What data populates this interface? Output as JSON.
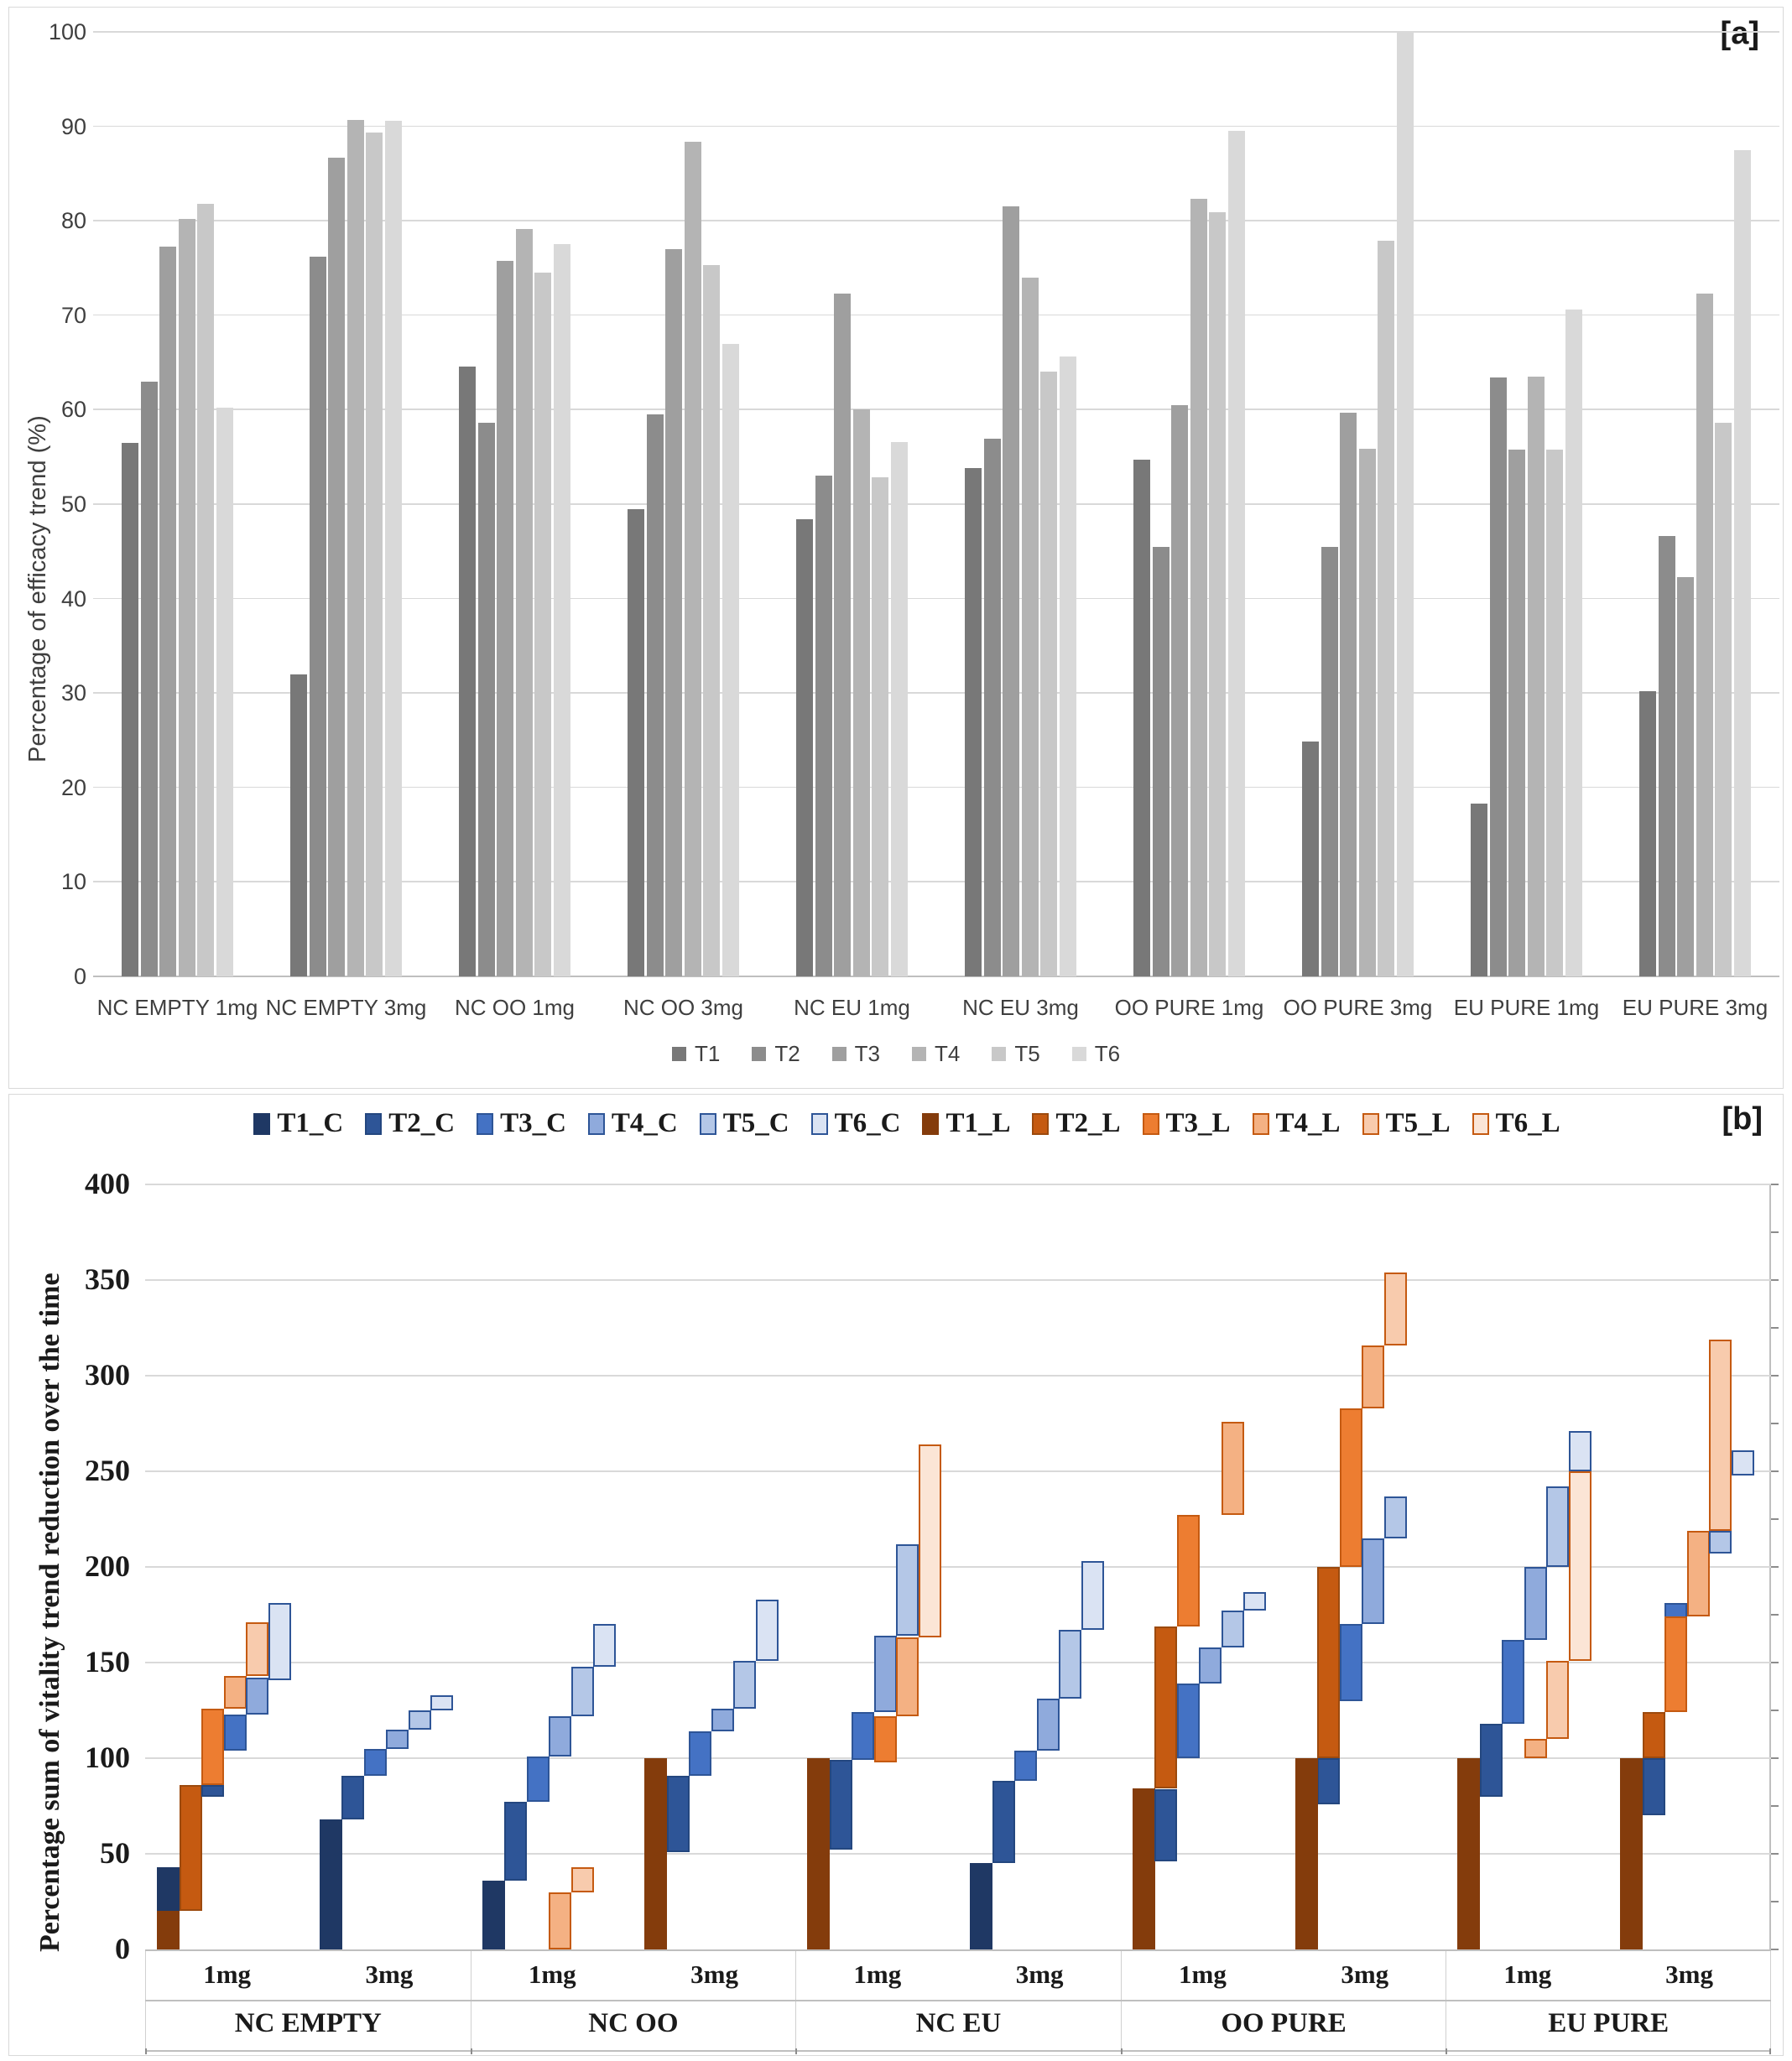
{
  "panel_a_label": "[a]",
  "panel_b_label": "[b]",
  "chart_data": [
    {
      "type": "bar",
      "name": "efficacy-trend",
      "title": "",
      "ylabel": "Percentage of efficacy trend (%)",
      "ylim": [
        0,
        100
      ],
      "y_ticks": [
        100,
        90,
        80,
        70,
        60,
        50,
        40,
        30,
        20,
        10,
        0
      ],
      "grid": true,
      "legend_position": "bottom",
      "series_names": [
        "T1",
        "T2",
        "T3",
        "T4",
        "T5",
        "T6"
      ],
      "series_colors": [
        "#787878",
        "#8c8c8c",
        "#9f9f9f",
        "#b4b4b4",
        "#c8c8c8",
        "#d9d9d9"
      ],
      "categories": [
        "NC EMPTY 1mg",
        "NC EMPTY 3mg",
        "NC OO 1mg",
        "NC OO 3mg",
        "NC EU 1mg",
        "NC EU 3mg",
        "OO PURE 1mg",
        "OO PURE 3mg",
        "EU PURE 1mg",
        "EU PURE 3mg"
      ],
      "values": [
        [
          56.5,
          63.0,
          77.3,
          80.2,
          81.8,
          60.2
        ],
        [
          32.0,
          76.2,
          86.7,
          90.7,
          89.3,
          90.6
        ],
        [
          64.6,
          58.6,
          75.8,
          79.1,
          74.5,
          77.5
        ],
        [
          49.5,
          59.5,
          77.0,
          88.4,
          75.3,
          67.0
        ],
        [
          48.4,
          53.0,
          72.3,
          60.0,
          52.8,
          56.6
        ],
        [
          53.8,
          56.9,
          81.5,
          74.0,
          64.0,
          65.6
        ],
        [
          54.7,
          45.5,
          60.5,
          82.3,
          80.9,
          89.5
        ],
        [
          24.9,
          45.5,
          59.7,
          55.9,
          77.9,
          100.0
        ],
        [
          18.3,
          63.4,
          55.8,
          63.5,
          55.8,
          70.6
        ],
        [
          30.2,
          46.6,
          42.3,
          72.3,
          58.6,
          87.5
        ]
      ]
    },
    {
      "type": "bar",
      "subtype": "floating-waterfall",
      "name": "vitality-trend-reduction",
      "title": "",
      "ylabel": "Percentage sum of  vitality trend reduction over the time",
      "ylim": [
        0,
        400
      ],
      "y_ticks": [
        400,
        350,
        300,
        250,
        200,
        150,
        100,
        50,
        0
      ],
      "grid": true,
      "legend_position": "top",
      "legend": [
        {
          "label": "T1_C",
          "fill": "#1f3864",
          "border": "#1f3864"
        },
        {
          "label": "T2_C",
          "fill": "#2e5597",
          "border": "#24477f"
        },
        {
          "label": "T3_C",
          "fill": "#4472c4",
          "border": "#2e5597"
        },
        {
          "label": "T4_C",
          "fill": "#8faadc",
          "border": "#2e5597"
        },
        {
          "label": "T5_C",
          "fill": "#b4c7e7",
          "border": "#2e5597"
        },
        {
          "label": "T6_C",
          "fill": "#dae3f3",
          "border": "#2e5597"
        },
        {
          "label": "T1_L",
          "fill": "#843c0c",
          "border": "#843c0c"
        },
        {
          "label": "T2_L",
          "fill": "#c55a11",
          "border": "#9c4a0e"
        },
        {
          "label": "T3_L",
          "fill": "#ed7d31",
          "border": "#c55a11"
        },
        {
          "label": "T4_L",
          "fill": "#f4b183",
          "border": "#c55a11"
        },
        {
          "label": "T5_L",
          "fill": "#f8cbad",
          "border": "#c55a11"
        },
        {
          "label": "T6_L",
          "fill": "#fbe5d6",
          "border": "#c55a11"
        }
      ],
      "groups": [
        {
          "label": "NC EMPTY",
          "subgroups": [
            {
              "label": "1mg",
              "segments": [
                {
                  "series": "T1_C",
                  "slot": 0,
                  "from": 0,
                  "to": 43
                },
                {
                  "series": "T1_L",
                  "slot": 0,
                  "from": 0,
                  "to": 20
                },
                {
                  "series": "T2_L",
                  "slot": 1,
                  "from": 20,
                  "to": 86
                },
                {
                  "series": "T2_C",
                  "slot": 2,
                  "from": 80,
                  "to": 86
                },
                {
                  "series": "T3_L",
                  "slot": 2,
                  "from": 86,
                  "to": 126
                },
                {
                  "series": "T3_C",
                  "slot": 3,
                  "from": 104,
                  "to": 123
                },
                {
                  "series": "T4_L",
                  "slot": 3,
                  "from": 126,
                  "to": 143
                },
                {
                  "series": "T4_C",
                  "slot": 4,
                  "from": 123,
                  "to": 142
                },
                {
                  "series": "T5_L",
                  "slot": 4,
                  "from": 143,
                  "to": 171
                },
                {
                  "series": "T6_C",
                  "slot": 5,
                  "from": 141,
                  "to": 181
                }
              ]
            },
            {
              "label": "3mg",
              "segments": [
                {
                  "series": "T1_C",
                  "slot": 0,
                  "from": 0,
                  "to": 68
                },
                {
                  "series": "T2_C",
                  "slot": 1,
                  "from": 68,
                  "to": 91
                },
                {
                  "series": "T3_C",
                  "slot": 2,
                  "from": 91,
                  "to": 105
                },
                {
                  "series": "T4_C",
                  "slot": 3,
                  "from": 105,
                  "to": 115
                },
                {
                  "series": "T5_C",
                  "slot": 4,
                  "from": 115,
                  "to": 125
                },
                {
                  "series": "T6_C",
                  "slot": 5,
                  "from": 125,
                  "to": 133
                }
              ]
            }
          ]
        },
        {
          "label": "NC OO",
          "subgroups": [
            {
              "label": "1mg",
              "segments": [
                {
                  "series": "T1_C",
                  "slot": 0,
                  "from": 0,
                  "to": 36
                },
                {
                  "series": "T2_C",
                  "slot": 1,
                  "from": 36,
                  "to": 77
                },
                {
                  "series": "T3_C",
                  "slot": 2,
                  "from": 77,
                  "to": 101
                },
                {
                  "series": "T4_L",
                  "slot": 3,
                  "from": 0,
                  "to": 30
                },
                {
                  "series": "T4_C",
                  "slot": 3,
                  "from": 101,
                  "to": 122
                },
                {
                  "series": "T5_L",
                  "slot": 4,
                  "from": 30,
                  "to": 43
                },
                {
                  "series": "T5_C",
                  "slot": 4,
                  "from": 122,
                  "to": 148
                },
                {
                  "series": "T6_C",
                  "slot": 5,
                  "from": 148,
                  "to": 170
                }
              ]
            },
            {
              "label": "3mg",
              "segments": [
                {
                  "series": "T2_C",
                  "slot": 1,
                  "from": 51,
                  "to": 91
                },
                {
                  "series": "T1_L",
                  "slot": 0,
                  "from": 0,
                  "to": 100
                },
                {
                  "series": "T3_C",
                  "slot": 2,
                  "from": 91,
                  "to": 114
                },
                {
                  "series": "T4_C",
                  "slot": 3,
                  "from": 114,
                  "to": 126
                },
                {
                  "series": "T5_C",
                  "slot": 4,
                  "from": 126,
                  "to": 151
                },
                {
                  "series": "T6_C",
                  "slot": 5,
                  "from": 151,
                  "to": 183
                }
              ]
            }
          ]
        },
        {
          "label": "NC EU",
          "subgroups": [
            {
              "label": "1mg",
              "segments": [
                {
                  "series": "T1_L",
                  "slot": 0,
                  "from": 0,
                  "to": 100
                },
                {
                  "series": "T2_C",
                  "slot": 1,
                  "from": 52,
                  "to": 99
                },
                {
                  "series": "T3_C",
                  "slot": 2,
                  "from": 99,
                  "to": 124
                },
                {
                  "series": "T3_L",
                  "slot": 3,
                  "from": 98,
                  "to": 122
                },
                {
                  "series": "T4_C",
                  "slot": 3,
                  "from": 124,
                  "to": 164
                },
                {
                  "series": "T4_L",
                  "slot": 4,
                  "from": 122,
                  "to": 163
                },
                {
                  "series": "T5_C",
                  "slot": 4,
                  "from": 164,
                  "to": 212
                },
                {
                  "series": "T6_L",
                  "slot": 5,
                  "from": 163,
                  "to": 264
                }
              ]
            },
            {
              "label": "3mg",
              "segments": [
                {
                  "series": "T1_C",
                  "slot": 0,
                  "from": 0,
                  "to": 45
                },
                {
                  "series": "T2_C",
                  "slot": 1,
                  "from": 45,
                  "to": 88
                },
                {
                  "series": "T3_C",
                  "slot": 2,
                  "from": 88,
                  "to": 104
                },
                {
                  "series": "T4_C",
                  "slot": 3,
                  "from": 104,
                  "to": 131
                },
                {
                  "series": "T5_C",
                  "slot": 4,
                  "from": 131,
                  "to": 167
                },
                {
                  "series": "T6_C",
                  "slot": 5,
                  "from": 167,
                  "to": 203
                }
              ]
            }
          ]
        },
        {
          "label": "OO PURE",
          "subgroups": [
            {
              "label": "1mg",
              "segments": [
                {
                  "series": "T1_L",
                  "slot": 0,
                  "from": 0,
                  "to": 84
                },
                {
                  "series": "T2_C",
                  "slot": 1,
                  "from": 46,
                  "to": 84
                },
                {
                  "series": "T2_L",
                  "slot": 1,
                  "from": 84,
                  "to": 169
                },
                {
                  "series": "T3_C",
                  "slot": 2,
                  "from": 100,
                  "to": 139
                },
                {
                  "series": "T3_L",
                  "slot": 2,
                  "from": 169,
                  "to": 227
                },
                {
                  "series": "T4_C",
                  "slot": 3,
                  "from": 139,
                  "to": 158
                },
                {
                  "series": "T5_C",
                  "slot": 4,
                  "from": 158,
                  "to": 177
                },
                {
                  "series": "T4_L",
                  "slot": 4,
                  "from": 227,
                  "to": 276
                },
                {
                  "series": "T6_C",
                  "slot": 5,
                  "from": 177,
                  "to": 187
                }
              ]
            },
            {
              "label": "3mg",
              "segments": [
                {
                  "series": "T2_C",
                  "slot": 1,
                  "from": 76,
                  "to": 100
                },
                {
                  "series": "T1_L",
                  "slot": 0,
                  "from": 0,
                  "to": 100
                },
                {
                  "series": "T2_L",
                  "slot": 1,
                  "from": 100,
                  "to": 200
                },
                {
                  "series": "T3_C",
                  "slot": 2,
                  "from": 130,
                  "to": 170
                },
                {
                  "series": "T3_L",
                  "slot": 2,
                  "from": 200,
                  "to": 283
                },
                {
                  "series": "T4_C",
                  "slot": 3,
                  "from": 170,
                  "to": 215
                },
                {
                  "series": "T4_L",
                  "slot": 3,
                  "from": 283,
                  "to": 316
                },
                {
                  "series": "T5_C",
                  "slot": 4,
                  "from": 215,
                  "to": 237
                },
                {
                  "series": "T5_L",
                  "slot": 4,
                  "from": 316,
                  "to": 354
                }
              ]
            }
          ]
        },
        {
          "label": "EU PURE",
          "subgroups": [
            {
              "label": "1mg",
              "segments": [
                {
                  "series": "T1_L",
                  "slot": 0,
                  "from": 0,
                  "to": 100
                },
                {
                  "series": "T2_C",
                  "slot": 1,
                  "from": 80,
                  "to": 118
                },
                {
                  "series": "T3_C",
                  "slot": 2,
                  "from": 118,
                  "to": 162
                },
                {
                  "series": "T4_C",
                  "slot": 3,
                  "from": 162,
                  "to": 200
                },
                {
                  "series": "T4_L",
                  "slot": 3,
                  "from": 100,
                  "to": 110
                },
                {
                  "series": "T5_C",
                  "slot": 4,
                  "from": 200,
                  "to": 242
                },
                {
                  "series": "T5_L",
                  "slot": 4,
                  "from": 110,
                  "to": 151
                },
                {
                  "series": "T6_L",
                  "slot": 5,
                  "from": 151,
                  "to": 250
                },
                {
                  "series": "T6_C",
                  "slot": 5,
                  "from": 250,
                  "to": 271
                }
              ]
            },
            {
              "label": "3mg",
              "segments": [
                {
                  "series": "T1_L",
                  "slot": 0,
                  "from": 0,
                  "to": 100
                },
                {
                  "series": "T2_C",
                  "slot": 1,
                  "from": 70,
                  "to": 100
                },
                {
                  "series": "T2_L",
                  "slot": 1,
                  "from": 100,
                  "to": 124
                },
                {
                  "series": "T3_C",
                  "slot": 2,
                  "from": 124,
                  "to": 181
                },
                {
                  "series": "T3_L",
                  "slot": 2,
                  "from": 124,
                  "to": 174
                },
                {
                  "series": "T4_L",
                  "slot": 3,
                  "from": 174,
                  "to": 219
                },
                {
                  "series": "T5_C",
                  "slot": 4,
                  "from": 207,
                  "to": 219
                },
                {
                  "series": "T5_L",
                  "slot": 4,
                  "from": 219,
                  "to": 319
                },
                {
                  "series": "T6_C",
                  "slot": 5,
                  "from": 248,
                  "to": 261
                }
              ]
            }
          ]
        }
      ]
    }
  ]
}
